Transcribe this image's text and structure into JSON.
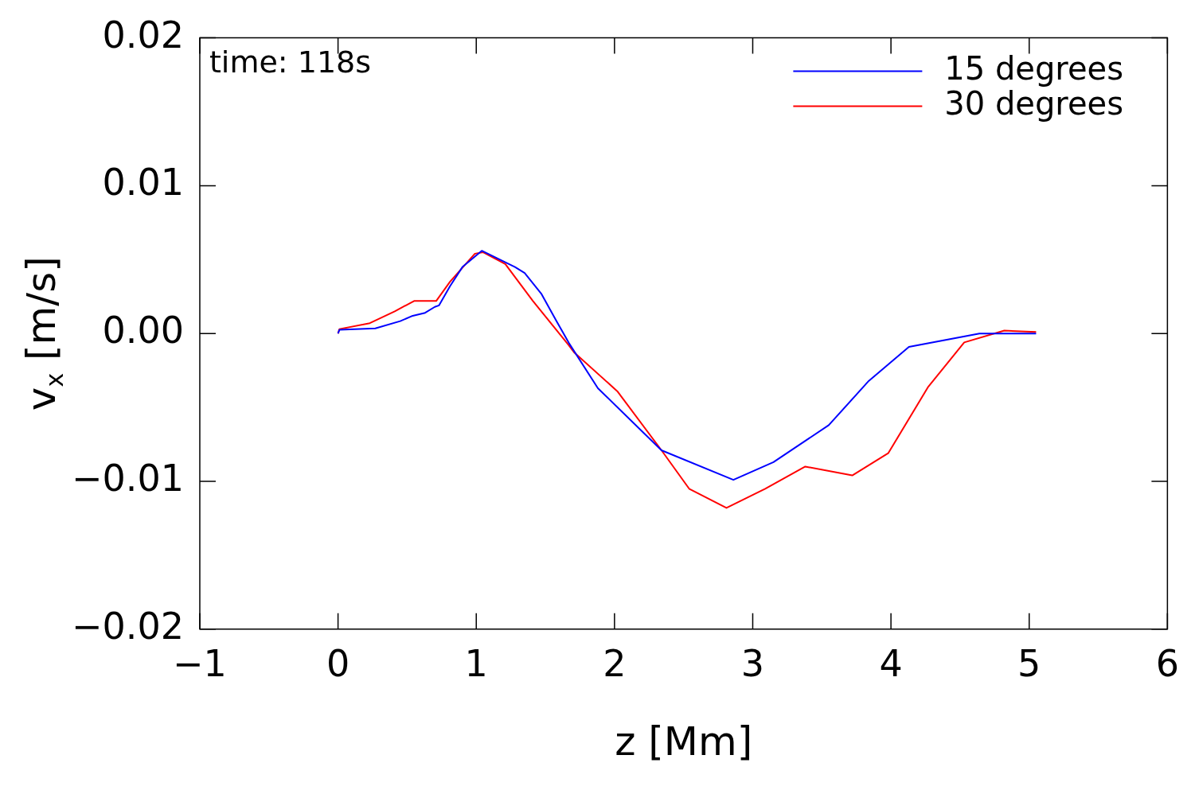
{
  "chart_data": {
    "type": "line",
    "xlabel": "z [Mm]",
    "ylabel": "v$_{x}$ [m/s]",
    "annotations": [
      "time: 118s"
    ],
    "legend": "top right",
    "grid": false,
    "marker": "none",
    "line_style": "solid",
    "xlim": [
      -1,
      6
    ],
    "xticks": [
      {
        "value": -1,
        "label": "−1"
      },
      0,
      1,
      2,
      3,
      4,
      5,
      6
    ],
    "ylim": [
      -0.02,
      0.02
    ],
    "yticks": [
      {
        "value": -0.02,
        "label": "−0.02"
      },
      {
        "value": -0.01,
        "label": "−0.01"
      },
      {
        "value": 0,
        "label": "0.00"
      },
      0.01,
      0.02
    ],
    "series": [
      {
        "name": "15 degrees",
        "color": "#0000ff",
        "x": [
          0,
          0.01,
          0.27,
          0.45,
          0.54,
          0.63,
          0.7,
          0.73,
          0.81,
          0.9,
          1.04,
          1.28,
          1.35,
          1.47,
          1.58,
          1.67,
          1.88,
          2.34,
          2.86,
          3.15,
          3.55,
          3.84,
          4.13,
          4.64,
          5.05
        ],
        "values": [
          0,
          0.00025,
          0.00035,
          0.00084,
          0.0012,
          0.0014,
          0.0018,
          0.0019,
          0.0032,
          0.0045,
          0.0056,
          0.0045,
          0.0041,
          0.0027,
          0.00084,
          -0.00064,
          -0.0037,
          -0.0079,
          -0.0099,
          -0.0087,
          -0.0062,
          -0.0032,
          -0.0009,
          0,
          0
        ]
      },
      {
        "name": "30 degrees",
        "color": "#ff0000",
        "x": [
          0,
          0.01,
          0.23,
          0.41,
          0.55,
          0.71,
          0.81,
          0.99,
          1.05,
          1.21,
          1.41,
          1.67,
          1.71,
          2.02,
          2.34,
          2.54,
          2.81,
          3.09,
          3.38,
          3.72,
          3.98,
          4.27,
          4.53,
          4.82,
          5.05
        ],
        "values": [
          0,
          0.0003,
          0.0007,
          0.0015,
          0.0022,
          0.0022,
          0.0035,
          0.0054,
          0.0055,
          0.0047,
          0.0022,
          -0.0008,
          -0.0013,
          -0.0039,
          -0.0079,
          -0.0105,
          -0.0118,
          -0.0105,
          -0.009,
          -0.0096,
          -0.0081,
          -0.0036,
          -0.0006,
          0.0002,
          0.0001
        ]
      }
    ]
  }
}
